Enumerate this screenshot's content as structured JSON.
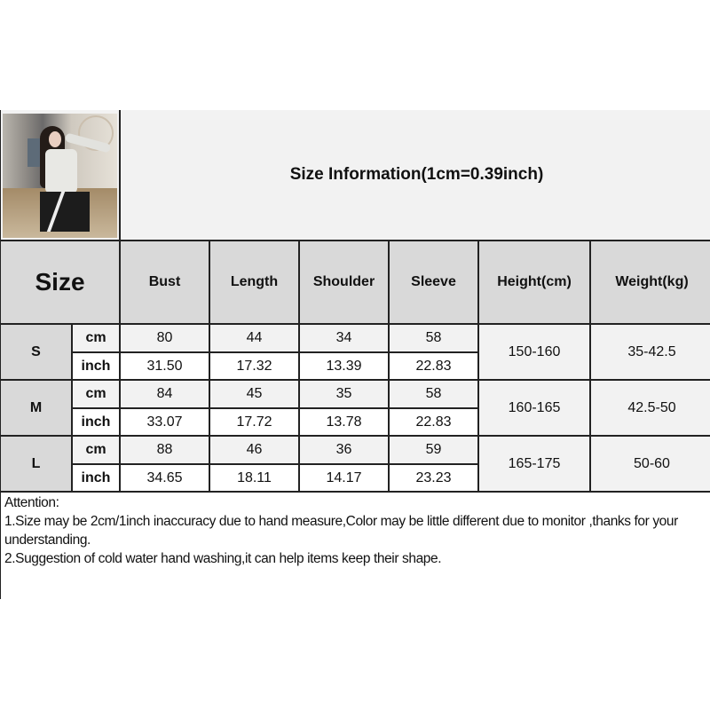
{
  "title": "Size Information(1cm=0.39inch)",
  "photo": {
    "icon": "model-photo"
  },
  "header": {
    "size": "Size",
    "columns": [
      "Bust",
      "Length",
      "Shoulder",
      "Sleeve",
      "Height(cm)",
      "Weight(kg)"
    ]
  },
  "rows": [
    {
      "size": "S",
      "cm_label": "cm",
      "inch_label": "inch",
      "cm": [
        "80",
        "44",
        "34",
        "58"
      ],
      "inch": [
        "31.50",
        "17.32",
        "13.39",
        "22.83"
      ],
      "height": "150-160",
      "weight": "35-42.5"
    },
    {
      "size": "M",
      "cm_label": "cm",
      "inch_label": "inch",
      "cm": [
        "84",
        "45",
        "35",
        "58"
      ],
      "inch": [
        "33.07",
        "17.72",
        "13.78",
        "22.83"
      ],
      "height": "160-165",
      "weight": "42.5-50"
    },
    {
      "size": "L",
      "cm_label": "cm",
      "inch_label": "inch",
      "cm": [
        "88",
        "46",
        "36",
        "59"
      ],
      "inch": [
        "34.65",
        "18.11",
        "14.17",
        "23.23"
      ],
      "height": "165-175",
      "weight": "50-60"
    }
  ],
  "notes": {
    "heading": "Attention:",
    "line1": "1.Size may be 2cm/1inch inaccuracy due to hand measure,Color may be little different due to monitor ,thanks for your understanding.",
    "line2": "2.Suggestion of cold water hand washing,it can help items keep their shape."
  },
  "colors": {
    "header_bg": "#d9d9d9",
    "cm_row_bg": "#f2f2f2",
    "inch_row_bg": "#ffffff",
    "border": "#222222"
  }
}
